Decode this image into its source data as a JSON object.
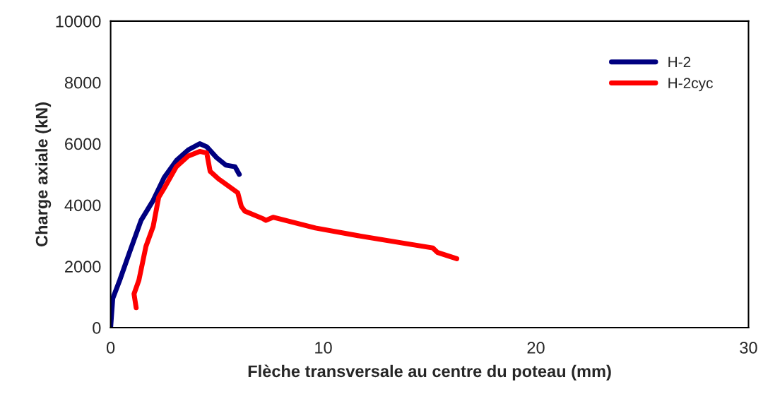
{
  "chart_data": {
    "type": "line",
    "xlabel": "Flèche transversale au centre du poteau (mm)",
    "ylabel": "Charge axiale (kN)",
    "xlim": [
      0,
      30
    ],
    "xticks": [
      0,
      10,
      20,
      30
    ],
    "ylim": [
      0,
      10000
    ],
    "yticks": [
      0,
      2000,
      4000,
      6000,
      8000,
      10000
    ],
    "grid": false,
    "legend": "top right",
    "marker": "none",
    "line_style": "solid",
    "series": [
      {
        "name": "H-2",
        "color": "#000080",
        "x": [
          0,
          0.1,
          0.43,
          0.86,
          1.43,
          2.0,
          2.52,
          3.09,
          3.65,
          4.19,
          4.52,
          4.98,
          5.42,
          5.85,
          6.05
        ],
        "values": [
          0,
          950,
          1550,
          2400,
          3500,
          4150,
          4900,
          5450,
          5800,
          6000,
          5900,
          5550,
          5300,
          5250,
          5000
        ]
      },
      {
        "name": "H-2cyc",
        "color": "#ff0000",
        "x": [
          1.2,
          1.1,
          1.33,
          1.66,
          2.0,
          2.26,
          2.52,
          3.09,
          3.65,
          4.19,
          4.52,
          4.68,
          5.08,
          5.98,
          6.15,
          6.31,
          7.18,
          7.3,
          7.64,
          9.63,
          11.63,
          13.82,
          15.15,
          15.38,
          16.28
        ],
        "values": [
          650,
          1100,
          1550,
          2650,
          3300,
          4250,
          4550,
          5250,
          5600,
          5750,
          5700,
          5100,
          4850,
          4400,
          3950,
          3800,
          3550,
          3500,
          3600,
          3250,
          3000,
          2750,
          2600,
          2450,
          2250
        ]
      }
    ]
  }
}
